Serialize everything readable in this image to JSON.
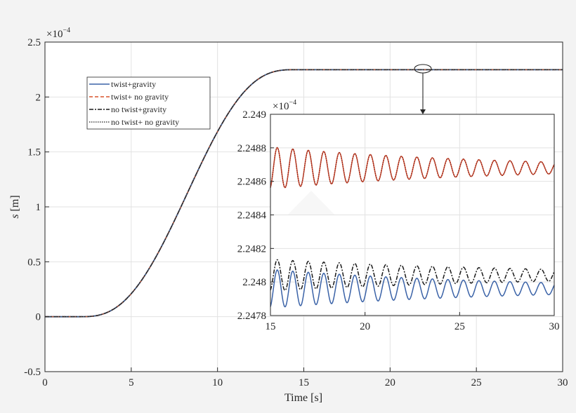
{
  "chart_data": {
    "main": {
      "type": "line",
      "title": "",
      "xlabel": "Time [s]",
      "ylabel_var": "s",
      "ylabel_unit": "[m]",
      "exponent_base": "×10",
      "exponent_power": "−4",
      "xlim": [
        0,
        30
      ],
      "ylim": [
        -0.5,
        2.5
      ],
      "xticks": [
        "0",
        "5",
        "10",
        "15",
        "20",
        "25",
        "30"
      ],
      "yticks": [
        "-0.5",
        "0",
        "0.5",
        "1",
        "1.5",
        "2",
        "2.5"
      ],
      "grid": true,
      "legend_position": "upper-left",
      "motion": {
        "start_time_s": 2.0,
        "end_time_s": 14.5,
        "final_value": 2.2487
      },
      "series": [
        {
          "name": "twist+gravity",
          "color": "#3a62a7",
          "style": "solid"
        },
        {
          "name": "twist+ no gravity",
          "color": "#d9542b",
          "style": "dashed"
        },
        {
          "name": "no twist+gravity",
          "color": "#1a1a1a",
          "style": "dashdot"
        },
        {
          "name": "no twist+ no gravity",
          "color": "#444444",
          "style": "dotted"
        }
      ]
    },
    "inset": {
      "type": "line",
      "xlim": [
        15,
        30
      ],
      "ylim": [
        2.2478,
        2.249
      ],
      "exponent_base": "×10",
      "exponent_power": "−4",
      "xticks": [
        "15",
        "20",
        "25",
        "30"
      ],
      "yticks": [
        "2.2478",
        "2.248",
        "2.2482",
        "2.2484",
        "2.2486",
        "2.2488",
        "2.249"
      ],
      "grid": true,
      "oscillation_period_s": 0.82,
      "series": [
        {
          "name": "twist+ no gravity",
          "mean": 2.24868,
          "amplitude_start": 0.000125,
          "amplitude_end": 3.5e-05,
          "color": "#d9542b"
        },
        {
          "name": "no twist+ no gravity",
          "mean": 2.24868,
          "amplitude_start": 0.000125,
          "amplitude_end": 3.5e-05,
          "color": "#8b2323"
        },
        {
          "name": "no twist+gravity",
          "mean": 2.24804,
          "amplitude_start": 9.5e-05,
          "amplitude_end": 3.5e-05,
          "color": "#1a1a1a"
        },
        {
          "name": "twist+gravity",
          "mean": 2.24796,
          "amplitude_start": 0.000115,
          "amplitude_end": 3.5e-05,
          "color": "#3a62a7"
        }
      ]
    }
  }
}
